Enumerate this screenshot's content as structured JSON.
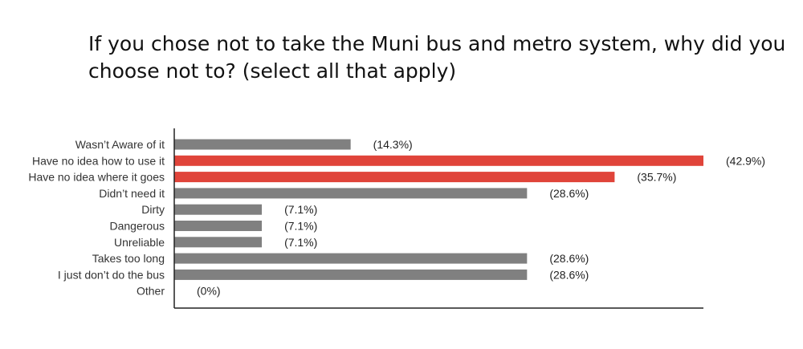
{
  "chart_data": {
    "type": "bar",
    "orientation": "horizontal",
    "title": "If you chose not to take the Muni bus and metro system, why did you choose not to? (select all that apply)",
    "categories": [
      "Wasn’t Aware of it",
      "Have no idea how to use it",
      "Have no idea where it goes",
      "Didn’t need it",
      "Dirty",
      "Dangerous",
      "Unreliable",
      "Takes too long",
      "I just don’t do the bus",
      "Other"
    ],
    "values": [
      14.3,
      42.9,
      35.7,
      28.6,
      7.1,
      7.1,
      7.1,
      28.6,
      28.6,
      0
    ],
    "value_labels": [
      "(14.3%)",
      "(42.9%)",
      "(35.7%)",
      "(28.6%)",
      "(7.1%)",
      "(7.1%)",
      "(7.1%)",
      "(28.6%)",
      "(28.6%)",
      "(0%)"
    ],
    "highlight": [
      false,
      true,
      true,
      false,
      false,
      false,
      false,
      false,
      false,
      false
    ],
    "xlim": [
      0,
      42.9
    ],
    "grid": false,
    "colors": {
      "default": "#808080",
      "highlight": "#e0443a",
      "axis": "#222222"
    }
  }
}
